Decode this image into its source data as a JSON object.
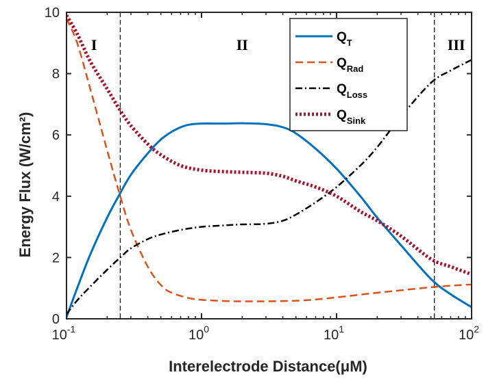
{
  "chart_data": {
    "type": "line",
    "title": "",
    "xlabel": "Interelectrode Distance(μM)",
    "ylabel": "Energy Flux (W/cm²)",
    "xscale": "log",
    "xlim": [
      0.1,
      100
    ],
    "ylim": [
      0,
      10
    ],
    "yticks": [
      0,
      2,
      4,
      6,
      8,
      10
    ],
    "xticks": [
      0.1,
      1,
      10,
      100
    ],
    "xtick_labels": [
      {
        "base": "10",
        "exp": "-1"
      },
      {
        "base": "10",
        "exp": "0"
      },
      {
        "base": "10",
        "exp": "1"
      },
      {
        "base": "10",
        "exp": "2"
      }
    ],
    "grid": false,
    "legend_position": "top-right",
    "vlines": [
      0.25,
      53
    ],
    "regions": [
      {
        "label": "I",
        "x": 0.16
      },
      {
        "label": "II",
        "x": 2.0
      },
      {
        "label": "III",
        "x": 77
      }
    ],
    "series": [
      {
        "name": "Q_T",
        "legend_main": "Q",
        "legend_sub": "T",
        "color": "#0072BD",
        "style": "solid",
        "x": [
          0.1,
          0.12,
          0.15,
          0.2,
          0.25,
          0.3,
          0.4,
          0.5,
          0.6,
          0.7,
          0.8,
          1,
          1.5,
          2,
          3,
          4,
          5,
          7,
          10,
          15,
          20,
          30,
          50,
          70,
          100
        ],
        "y": [
          0.05,
          1.0,
          2.1,
          3.3,
          4.1,
          4.7,
          5.4,
          5.85,
          6.1,
          6.25,
          6.33,
          6.37,
          6.37,
          6.38,
          6.35,
          6.25,
          6.05,
          5.55,
          4.9,
          4.0,
          3.3,
          2.4,
          1.3,
          0.8,
          0.38
        ]
      },
      {
        "name": "Q_Rad",
        "legend_main": "Q",
        "legend_sub": "Rad",
        "color": "#D95319",
        "style": "dashed",
        "x": [
          0.1,
          0.12,
          0.15,
          0.2,
          0.25,
          0.3,
          0.4,
          0.5,
          0.6,
          0.8,
          1,
          1.5,
          2,
          3,
          5,
          7,
          10,
          20,
          30,
          50,
          70,
          100
        ],
        "y": [
          9.8,
          9.0,
          7.5,
          5.5,
          4.0,
          2.9,
          1.7,
          1.1,
          0.85,
          0.68,
          0.62,
          0.58,
          0.57,
          0.57,
          0.59,
          0.63,
          0.7,
          0.85,
          0.93,
          1.03,
          1.08,
          1.12
        ]
      },
      {
        "name": "Q_Loss",
        "legend_main": "Q",
        "legend_sub": "Loss",
        "color": "#000000",
        "style": "dashdot",
        "x": [
          0.1,
          0.12,
          0.15,
          0.2,
          0.25,
          0.3,
          0.4,
          0.5,
          0.7,
          1,
          1.5,
          2,
          3,
          4,
          5,
          7,
          10,
          15,
          20,
          30,
          50,
          70,
          100
        ],
        "y": [
          0.15,
          0.6,
          1.05,
          1.6,
          2.0,
          2.3,
          2.6,
          2.75,
          2.9,
          3.0,
          3.05,
          3.08,
          3.1,
          3.2,
          3.4,
          3.8,
          4.3,
          5.0,
          5.6,
          6.6,
          7.7,
          8.1,
          8.45
        ]
      },
      {
        "name": "Q_Sink",
        "legend_main": "Q",
        "legend_sub": "Sink",
        "color": "#A2142F",
        "style": "dotted",
        "x": [
          0.1,
          0.12,
          0.15,
          0.2,
          0.25,
          0.3,
          0.4,
          0.5,
          0.7,
          1,
          1.5,
          2,
          3,
          4,
          5,
          7,
          10,
          15,
          20,
          30,
          50,
          70,
          100
        ],
        "y": [
          9.9,
          9.3,
          8.4,
          7.5,
          6.8,
          6.3,
          5.7,
          5.35,
          5.0,
          4.85,
          4.8,
          4.78,
          4.75,
          4.65,
          4.5,
          4.3,
          4.0,
          3.5,
          3.2,
          2.7,
          1.95,
          1.7,
          1.45
        ]
      }
    ]
  }
}
